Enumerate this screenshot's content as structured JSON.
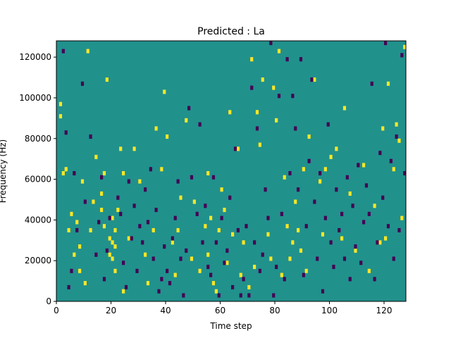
{
  "chart_data": {
    "type": "heatmap",
    "title": "Predicted : La",
    "xlabel": "Time step",
    "ylabel": "Frequency (Hz)",
    "xlim": [
      0,
      128
    ],
    "ylim": [
      0,
      128000
    ],
    "x_ticks": [
      0,
      20,
      40,
      60,
      80,
      100,
      120
    ],
    "y_ticks": [
      0,
      20000,
      40000,
      60000,
      80000,
      100000,
      120000
    ],
    "grid": false,
    "colors": {
      "background_value": "#21918c",
      "high_value": "#fde725",
      "low_value": "#440154"
    },
    "cell_height_hz": 2000,
    "high_cells": [
      [
        1,
        90000
      ],
      [
        1,
        96000
      ],
      [
        2,
        62000
      ],
      [
        3,
        64000
      ],
      [
        4,
        34000
      ],
      [
        5,
        42000
      ],
      [
        6,
        22000
      ],
      [
        7,
        38000
      ],
      [
        8,
        14000
      ],
      [
        8,
        26000
      ],
      [
        9,
        58000
      ],
      [
        10,
        8000
      ],
      [
        11,
        122000
      ],
      [
        12,
        34000
      ],
      [
        13,
        48000
      ],
      [
        14,
        70000
      ],
      [
        16,
        44000
      ],
      [
        16,
        52000
      ],
      [
        17,
        36000
      ],
      [
        17,
        62000
      ],
      [
        18,
        108000
      ],
      [
        19,
        22000
      ],
      [
        19,
        30000
      ],
      [
        20,
        20000
      ],
      [
        20,
        28000
      ],
      [
        20,
        40000
      ],
      [
        21,
        14000
      ],
      [
        21,
        26000
      ],
      [
        21,
        34000
      ],
      [
        22,
        44000
      ],
      [
        23,
        74000
      ],
      [
        24,
        62000
      ],
      [
        24,
        4000
      ],
      [
        26,
        30000
      ],
      [
        28,
        74000
      ],
      [
        30,
        58000
      ],
      [
        32,
        22000
      ],
      [
        33,
        8000
      ],
      [
        35,
        34000
      ],
      [
        36,
        84000
      ],
      [
        38,
        64000
      ],
      [
        39,
        102000
      ],
      [
        40,
        80000
      ],
      [
        42,
        28000
      ],
      [
        43,
        12000
      ],
      [
        44,
        34000
      ],
      [
        45,
        50000
      ],
      [
        47,
        88000
      ],
      [
        49,
        20000
      ],
      [
        50,
        48000
      ],
      [
        52,
        14000
      ],
      [
        54,
        36000
      ],
      [
        55,
        62000
      ],
      [
        55,
        22000
      ],
      [
        56,
        40000
      ],
      [
        57,
        8000
      ],
      [
        58,
        4000
      ],
      [
        59,
        34000
      ],
      [
        60,
        54000
      ],
      [
        61,
        44000
      ],
      [
        62,
        18000
      ],
      [
        63,
        92000
      ],
      [
        64,
        32000
      ],
      [
        66,
        74000
      ],
      [
        67,
        12000
      ],
      [
        68,
        28000
      ],
      [
        70,
        6000
      ],
      [
        71,
        118000
      ],
      [
        72,
        16000
      ],
      [
        73,
        92000
      ],
      [
        74,
        76000
      ],
      [
        75,
        108000
      ],
      [
        77,
        32000
      ],
      [
        78,
        20000
      ],
      [
        79,
        104000
      ],
      [
        80,
        88000
      ],
      [
        81,
        122000
      ],
      [
        82,
        12000
      ],
      [
        83,
        60000
      ],
      [
        84,
        36000
      ],
      [
        85,
        20000
      ],
      [
        86,
        28000
      ],
      [
        87,
        48000
      ],
      [
        88,
        34000
      ],
      [
        89,
        24000
      ],
      [
        90,
        64000
      ],
      [
        91,
        14000
      ],
      [
        92,
        80000
      ],
      [
        94,
        108000
      ],
      [
        96,
        58000
      ],
      [
        97,
        32000
      ],
      [
        98,
        64000
      ],
      [
        100,
        70000
      ],
      [
        102,
        74000
      ],
      [
        104,
        30000
      ],
      [
        105,
        94000
      ],
      [
        107,
        52000
      ],
      [
        109,
        24000
      ],
      [
        112,
        66000
      ],
      [
        114,
        14000
      ],
      [
        116,
        46000
      ],
      [
        118,
        28000
      ],
      [
        119,
        84000
      ],
      [
        120,
        30000
      ],
      [
        121,
        106000
      ],
      [
        123,
        64000
      ],
      [
        124,
        86000
      ],
      [
        125,
        78000
      ],
      [
        126,
        40000
      ],
      [
        127,
        124000
      ]
    ],
    "low_cells": [
      [
        2,
        122000
      ],
      [
        3,
        82000
      ],
      [
        4,
        6000
      ],
      [
        5,
        14000
      ],
      [
        6,
        62000
      ],
      [
        7,
        34000
      ],
      [
        9,
        106000
      ],
      [
        10,
        48000
      ],
      [
        12,
        80000
      ],
      [
        14,
        22000
      ],
      [
        15,
        38000
      ],
      [
        16,
        60000
      ],
      [
        17,
        10000
      ],
      [
        18,
        24000
      ],
      [
        19,
        40000
      ],
      [
        22,
        50000
      ],
      [
        23,
        42000
      ],
      [
        24,
        18000
      ],
      [
        25,
        6000
      ],
      [
        26,
        58000
      ],
      [
        27,
        30000
      ],
      [
        28,
        46000
      ],
      [
        29,
        14000
      ],
      [
        30,
        36000
      ],
      [
        31,
        28000
      ],
      [
        32,
        54000
      ],
      [
        33,
        38000
      ],
      [
        34,
        64000
      ],
      [
        35,
        20000
      ],
      [
        36,
        44000
      ],
      [
        37,
        4000
      ],
      [
        38,
        10000
      ],
      [
        39,
        26000
      ],
      [
        40,
        14000
      ],
      [
        41,
        8000
      ],
      [
        42,
        30000
      ],
      [
        43,
        40000
      ],
      [
        44,
        58000
      ],
      [
        45,
        20000
      ],
      [
        46,
        2000
      ],
      [
        47,
        24000
      ],
      [
        48,
        94000
      ],
      [
        49,
        60000
      ],
      [
        51,
        42000
      ],
      [
        52,
        86000
      ],
      [
        53,
        28000
      ],
      [
        54,
        46000
      ],
      [
        55,
        16000
      ],
      [
        56,
        12000
      ],
      [
        57,
        60000
      ],
      [
        58,
        28000
      ],
      [
        59,
        2000
      ],
      [
        60,
        40000
      ],
      [
        61,
        18000
      ],
      [
        62,
        24000
      ],
      [
        63,
        50000
      ],
      [
        64,
        6000
      ],
      [
        65,
        74000
      ],
      [
        66,
        34000
      ],
      [
        67,
        2000
      ],
      [
        68,
        10000
      ],
      [
        69,
        36000
      ],
      [
        70,
        2000
      ],
      [
        71,
        104000
      ],
      [
        72,
        28000
      ],
      [
        73,
        84000
      ],
      [
        74,
        14000
      ],
      [
        75,
        22000
      ],
      [
        76,
        54000
      ],
      [
        77,
        40000
      ],
      [
        78,
        126000
      ],
      [
        79,
        2000
      ],
      [
        80,
        16000
      ],
      [
        81,
        100000
      ],
      [
        82,
        42000
      ],
      [
        83,
        10000
      ],
      [
        84,
        118000
      ],
      [
        85,
        62000
      ],
      [
        86,
        100000
      ],
      [
        87,
        84000
      ],
      [
        88,
        54000
      ],
      [
        89,
        118000
      ],
      [
        90,
        12000
      ],
      [
        91,
        36000
      ],
      [
        92,
        68000
      ],
      [
        93,
        108000
      ],
      [
        94,
        48000
      ],
      [
        95,
        20000
      ],
      [
        96,
        62000
      ],
      [
        97,
        4000
      ],
      [
        98,
        40000
      ],
      [
        99,
        86000
      ],
      [
        100,
        28000
      ],
      [
        101,
        16000
      ],
      [
        102,
        54000
      ],
      [
        103,
        34000
      ],
      [
        104,
        42000
      ],
      [
        105,
        20000
      ],
      [
        106,
        60000
      ],
      [
        107,
        10000
      ],
      [
        108,
        46000
      ],
      [
        109,
        26000
      ],
      [
        110,
        66000
      ],
      [
        111,
        18000
      ],
      [
        112,
        38000
      ],
      [
        113,
        56000
      ],
      [
        114,
        42000
      ],
      [
        115,
        106000
      ],
      [
        116,
        10000
      ],
      [
        117,
        28000
      ],
      [
        118,
        72000
      ],
      [
        119,
        50000
      ],
      [
        120,
        126000
      ],
      [
        121,
        36000
      ],
      [
        122,
        68000
      ],
      [
        123,
        20000
      ],
      [
        124,
        80000
      ],
      [
        125,
        34000
      ],
      [
        126,
        120000
      ],
      [
        127,
        62000
      ]
    ]
  }
}
